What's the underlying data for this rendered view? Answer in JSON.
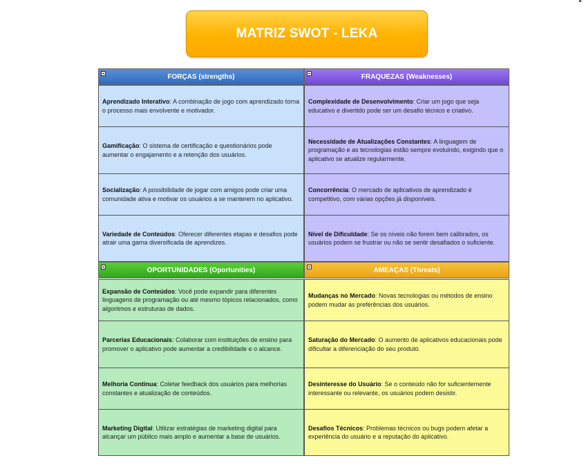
{
  "title": "MATRIZ SWOT - LEKA",
  "colors": {
    "forcas": "#c9e1fb",
    "fraquezas": "#c3c0fb",
    "oportunidades": "#b5ebbd",
    "ameacas": "#fcfb98",
    "title_bg": "#ffb200"
  },
  "quadrants": {
    "forcas": {
      "header": "FORÇAS (strengths)",
      "items": [
        {
          "term": "Aprendizado Interativo",
          "text": ": A combinação de jogo com aprendizado torna o processo mais envolvente e motivador."
        },
        {
          "term": "Gamificação",
          "text": ": O sistema de certificação e questionários pode aumentar o engajamento e a retenção dos usuários."
        },
        {
          "term": "Socialização",
          "text": ": A possibilidade de jogar com amigos pode criar uma comunidade ativa e motivar os usuários a se manterem no aplicativo."
        },
        {
          "term": "Variedade de Conteúdos",
          "text": ": Oferecer diferentes etapas e desafios pode atrair uma gama diversificada de aprendizes."
        }
      ]
    },
    "fraquezas": {
      "header": "FRAQUEZAS (Weaknesses)",
      "items": [
        {
          "term": "Complexidade de Desenvolvimento",
          "text": ": Criar um jogo que seja educativo e divertido pode ser um desafio técnico e criativo."
        },
        {
          "term": "Necessidade de Atualizações Constantes",
          "text": ": A linguagem de programação e as tecnologias estão sempre evoluindo, exigindo que o aplicativo se atualize regularmente."
        },
        {
          "term": "Concorrência",
          "text": ": O mercado de aplicativos de aprendizado é competitivo, com várias opções já disponíveis."
        },
        {
          "term": "Nível de Dificuldade",
          "text": ": Se os níveis não forem bem calibrados, os usuários podem se frustrar ou não se sentir desafiados o suficiente."
        }
      ]
    },
    "oportunidades": {
      "header": "OPORTUNIDADES (Oportunities)",
      "items": [
        {
          "term": "Expansão de Conteúdos",
          "text": ": Você pode expandir para diferentes linguagens de programação ou até mesmo tópicos relacionados, como algoritmos e estruturas de dados."
        },
        {
          "term": "Parcerias Educacionais",
          "text": ": Colaborar com instituições de ensino para promover o aplicativo pode aumentar a credibilidade e o alcance."
        },
        {
          "term": "Melhoria Contínua",
          "text": ": Coletar feedback dos usuários para melhorias constantes e atualização de conteúdos."
        },
        {
          "term": "Marketing Digital",
          "text": ": Utilizar estratégias de marketing digital para alcançar um público mais amplo e aumentar a base de usuários."
        }
      ]
    },
    "ameacas": {
      "header": "AMEAÇAS (Threats)",
      "items": [
        {
          "term": "Mudanças no Mercado",
          "text": ": Novas tecnologias ou métodos de ensino podem mudar as preferências dos usuários."
        },
        {
          "term": "Saturação do Mercado",
          "text": ": O aumento de aplicativos educacionais pode dificultar a diferenciação do seu produto."
        },
        {
          "term": "Desinteresse do Usuário",
          "text": ": Se o conteúdo não for suficientemente interessante ou relevante, os usuários podem desistir."
        },
        {
          "term": "Desafios Técnicos",
          "text": ": Problemas técnicos ou bugs podem afetar a experiência do usuário e a reputação do aplicativo."
        }
      ]
    }
  }
}
